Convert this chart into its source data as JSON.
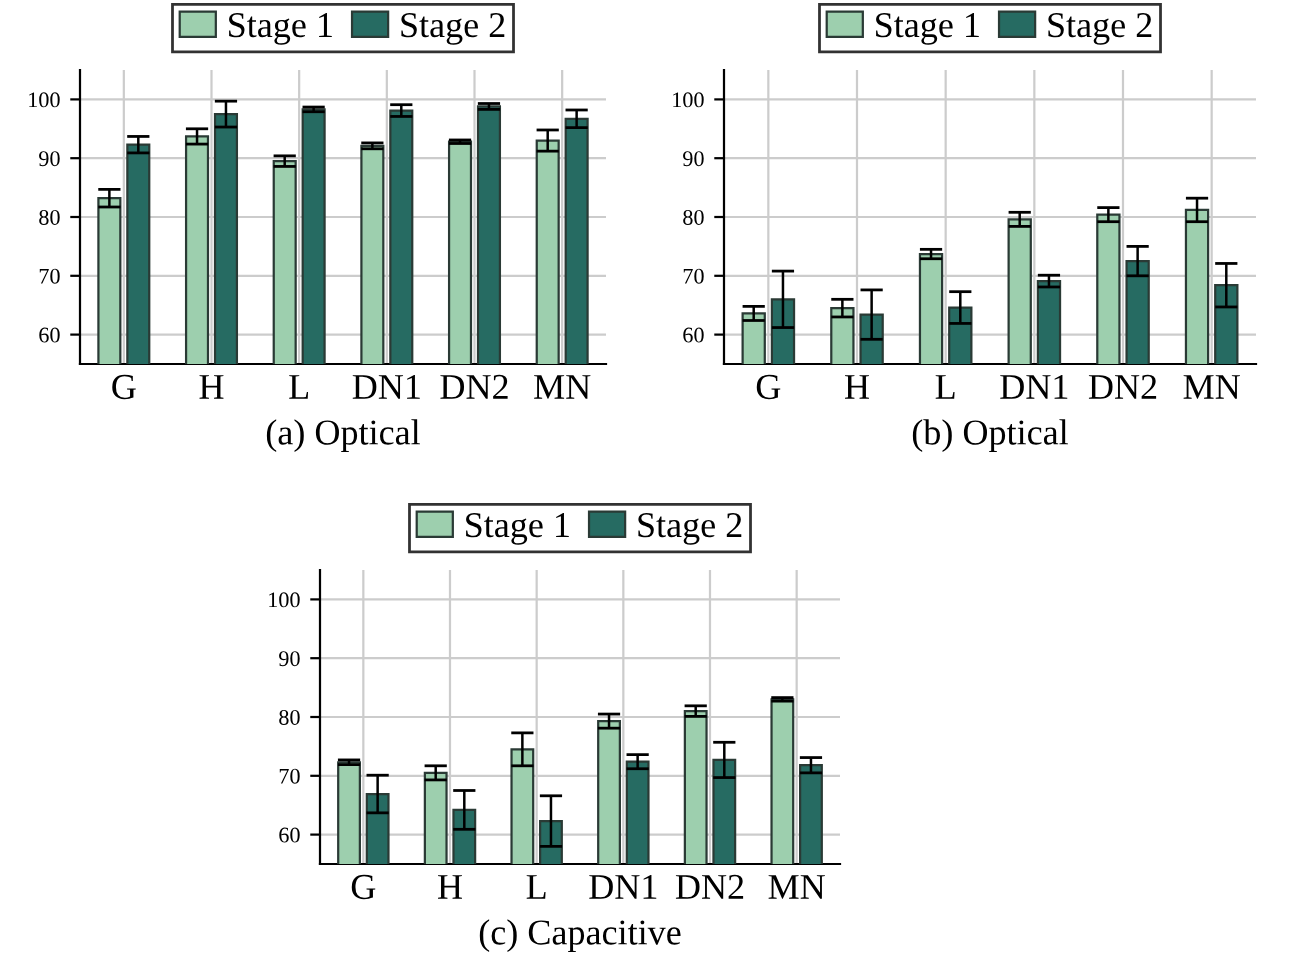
{
  "chart_data": [
    {
      "type": "bar",
      "title": "(a) Optical",
      "categories": [
        "G",
        "H",
        "L",
        "DN1",
        "DN2",
        "MN"
      ],
      "ylim": [
        55,
        105
      ],
      "yticks": [
        60,
        70,
        80,
        90,
        100
      ],
      "grid": true,
      "legend": "top",
      "series": [
        {
          "name": "Stage 1",
          "color": "#9dcfae",
          "values": [
            83.2,
            93.7,
            89.5,
            92.1,
            92.8,
            93.0
          ],
          "errors": [
            1.5,
            1.3,
            0.9,
            0.5,
            0.3,
            1.8
          ]
        },
        {
          "name": "Stage 2",
          "color": "#266b62",
          "values": [
            92.3,
            97.5,
            98.3,
            98.1,
            98.8,
            96.7
          ],
          "errors": [
            1.4,
            2.2,
            0.4,
            1.0,
            0.5,
            1.5
          ]
        }
      ]
    },
    {
      "type": "bar",
      "title": "(b) Optical",
      "categories": [
        "G",
        "H",
        "L",
        "DN1",
        "DN2",
        "MN"
      ],
      "ylim": [
        55,
        105
      ],
      "yticks": [
        60,
        70,
        80,
        90,
        100
      ],
      "grid": true,
      "legend": "top",
      "series": [
        {
          "name": "Stage 1",
          "color": "#9dcfae",
          "values": [
            63.6,
            64.5,
            73.7,
            79.6,
            80.4,
            81.2
          ],
          "errors": [
            1.2,
            1.5,
            0.8,
            1.2,
            1.2,
            2.0
          ]
        },
        {
          "name": "Stage 2",
          "color": "#266b62",
          "values": [
            66.0,
            63.4,
            64.6,
            69.1,
            72.5,
            68.4
          ],
          "errors": [
            4.8,
            4.2,
            2.7,
            1.0,
            2.5,
            3.7
          ]
        }
      ]
    },
    {
      "type": "bar",
      "title": "(c) Capacitive",
      "categories": [
        "G",
        "H",
        "L",
        "DN1",
        "DN2",
        "MN"
      ],
      "ylim": [
        55,
        105
      ],
      "yticks": [
        60,
        70,
        80,
        90,
        100
      ],
      "grid": true,
      "legend": "top",
      "series": [
        {
          "name": "Stage 1",
          "color": "#9dcfae",
          "values": [
            72.3,
            70.5,
            74.5,
            79.3,
            81.0,
            83.0
          ],
          "errors": [
            0.4,
            1.2,
            2.8,
            1.2,
            0.9,
            0.3
          ]
        },
        {
          "name": "Stage 2",
          "color": "#266b62",
          "values": [
            66.9,
            64.2,
            62.3,
            72.4,
            72.7,
            71.8
          ],
          "errors": [
            3.2,
            3.3,
            4.3,
            1.2,
            3.0,
            1.3
          ]
        }
      ]
    }
  ]
}
